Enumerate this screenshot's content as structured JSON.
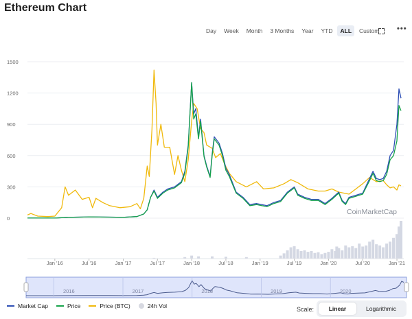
{
  "page": {
    "title": "Ethereum Chart"
  },
  "toolbar": {
    "ranges": [
      "Day",
      "Week",
      "Month",
      "3 Months",
      "Year",
      "YTD",
      "ALL",
      "Custom"
    ],
    "active_range": "ALL"
  },
  "colors": {
    "market_cap": "#2e4fb5",
    "price": "#16a34a",
    "price_btc": "#f0b90b",
    "volume": "#d4d8e3",
    "grid": "#eceef2",
    "navigator_fill": "#dfe5fb",
    "navigator_border": "#8ea0de"
  },
  "watermark": "CoinMarketCap",
  "legend": {
    "market_cap": "Market Cap",
    "price": "Price",
    "price_btc": "Price (BTC)",
    "volume": "24h Vol"
  },
  "scale": {
    "label": "Scale:",
    "options": [
      "Linear",
      "Logarithmic"
    ],
    "selected": "Linear"
  },
  "chart_data": {
    "type": "line",
    "title": "Ethereum Chart",
    "ylim": [
      0,
      1500
    ],
    "yticks": [
      0,
      300,
      600,
      900,
      1200,
      1500
    ],
    "x_domain": [
      2015.6,
      2021.1
    ],
    "x_tick_labels": [
      {
        "t": 2016.0,
        "label": "Jan '16"
      },
      {
        "t": 2016.5,
        "label": "Jul '16"
      },
      {
        "t": 2017.0,
        "label": "Jan '17"
      },
      {
        "t": 2017.5,
        "label": "Jul '17"
      },
      {
        "t": 2018.0,
        "label": "Jan '18"
      },
      {
        "t": 2018.5,
        "label": "Jul '18"
      },
      {
        "t": 2019.0,
        "label": "Jan '19"
      },
      {
        "t": 2019.5,
        "label": "Jul '19"
      },
      {
        "t": 2020.0,
        "label": "Jan '20"
      },
      {
        "t": 2020.5,
        "label": "Jul '20"
      },
      {
        "t": 2021.0,
        "label": "Jan '21"
      }
    ],
    "navigator_year_labels": [
      {
        "t": 2016.0,
        "label": "2016"
      },
      {
        "t": 2017.0,
        "label": "2017"
      },
      {
        "t": 2018.0,
        "label": "2018"
      },
      {
        "t": 2019.0,
        "label": "2019"
      },
      {
        "t": 2020.0,
        "label": "2020"
      }
    ],
    "series": [
      {
        "name": "Market Cap",
        "key": "market_cap",
        "points": [
          [
            2015.6,
            2
          ],
          [
            2016.0,
            1
          ],
          [
            2016.2,
            8
          ],
          [
            2016.5,
            12
          ],
          [
            2016.8,
            10
          ],
          [
            2017.0,
            8
          ],
          [
            2017.2,
            15
          ],
          [
            2017.3,
            40
          ],
          [
            2017.35,
            80
          ],
          [
            2017.4,
            200
          ],
          [
            2017.45,
            270
          ],
          [
            2017.5,
            200
          ],
          [
            2017.58,
            250
          ],
          [
            2017.65,
            280
          ],
          [
            2017.75,
            300
          ],
          [
            2017.85,
            350
          ],
          [
            2017.9,
            450
          ],
          [
            2017.95,
            700
          ],
          [
            2018.0,
            1300
          ],
          [
            2018.03,
            1000
          ],
          [
            2018.06,
            1050
          ],
          [
            2018.1,
            780
          ],
          [
            2018.13,
            950
          ],
          [
            2018.18,
            600
          ],
          [
            2018.22,
            500
          ],
          [
            2018.27,
            400
          ],
          [
            2018.3,
            620
          ],
          [
            2018.33,
            780
          ],
          [
            2018.4,
            720
          ],
          [
            2018.45,
            620
          ],
          [
            2018.5,
            480
          ],
          [
            2018.55,
            420
          ],
          [
            2018.65,
            250
          ],
          [
            2018.75,
            200
          ],
          [
            2018.85,
            130
          ],
          [
            2018.95,
            140
          ],
          [
            2019.1,
            120
          ],
          [
            2019.2,
            150
          ],
          [
            2019.3,
            170
          ],
          [
            2019.4,
            250
          ],
          [
            2019.5,
            300
          ],
          [
            2019.55,
            230
          ],
          [
            2019.65,
            200
          ],
          [
            2019.75,
            180
          ],
          [
            2019.85,
            180
          ],
          [
            2019.95,
            140
          ],
          [
            2020.05,
            190
          ],
          [
            2020.15,
            250
          ],
          [
            2020.2,
            170
          ],
          [
            2020.25,
            140
          ],
          [
            2020.3,
            200
          ],
          [
            2020.4,
            220
          ],
          [
            2020.5,
            240
          ],
          [
            2020.6,
            380
          ],
          [
            2020.65,
            450
          ],
          [
            2020.7,
            380
          ],
          [
            2020.75,
            370
          ],
          [
            2020.8,
            380
          ],
          [
            2020.85,
            450
          ],
          [
            2020.9,
            600
          ],
          [
            2020.95,
            650
          ],
          [
            2021.0,
            900
          ],
          [
            2021.03,
            1240
          ],
          [
            2021.06,
            1150
          ]
        ]
      },
      {
        "name": "Price",
        "key": "price",
        "points": [
          [
            2015.6,
            2
          ],
          [
            2016.0,
            1
          ],
          [
            2016.2,
            8
          ],
          [
            2016.5,
            12
          ],
          [
            2016.8,
            10
          ],
          [
            2017.0,
            8
          ],
          [
            2017.2,
            15
          ],
          [
            2017.3,
            40
          ],
          [
            2017.35,
            80
          ],
          [
            2017.4,
            200
          ],
          [
            2017.45,
            260
          ],
          [
            2017.5,
            190
          ],
          [
            2017.58,
            240
          ],
          [
            2017.65,
            270
          ],
          [
            2017.75,
            290
          ],
          [
            2017.85,
            340
          ],
          [
            2017.9,
            430
          ],
          [
            2017.95,
            680
          ],
          [
            2018.0,
            1300
          ],
          [
            2018.03,
            950
          ],
          [
            2018.06,
            1000
          ],
          [
            2018.1,
            760
          ],
          [
            2018.13,
            930
          ],
          [
            2018.18,
            590
          ],
          [
            2018.22,
            490
          ],
          [
            2018.27,
            390
          ],
          [
            2018.3,
            600
          ],
          [
            2018.33,
            760
          ],
          [
            2018.4,
            700
          ],
          [
            2018.45,
            600
          ],
          [
            2018.5,
            460
          ],
          [
            2018.55,
            400
          ],
          [
            2018.65,
            240
          ],
          [
            2018.75,
            190
          ],
          [
            2018.85,
            120
          ],
          [
            2018.95,
            130
          ],
          [
            2019.1,
            110
          ],
          [
            2019.2,
            140
          ],
          [
            2019.3,
            160
          ],
          [
            2019.4,
            240
          ],
          [
            2019.5,
            290
          ],
          [
            2019.55,
            220
          ],
          [
            2019.65,
            190
          ],
          [
            2019.75,
            170
          ],
          [
            2019.85,
            170
          ],
          [
            2019.95,
            130
          ],
          [
            2020.05,
            180
          ],
          [
            2020.15,
            240
          ],
          [
            2020.2,
            160
          ],
          [
            2020.25,
            130
          ],
          [
            2020.3,
            190
          ],
          [
            2020.4,
            210
          ],
          [
            2020.5,
            230
          ],
          [
            2020.6,
            360
          ],
          [
            2020.65,
            430
          ],
          [
            2020.7,
            360
          ],
          [
            2020.75,
            350
          ],
          [
            2020.8,
            360
          ],
          [
            2020.85,
            420
          ],
          [
            2020.9,
            560
          ],
          [
            2020.95,
            600
          ],
          [
            2021.0,
            740
          ],
          [
            2021.03,
            1080
          ],
          [
            2021.06,
            1030
          ]
        ]
      },
      {
        "name": "Price (BTC)",
        "key": "price_btc",
        "points": [
          [
            2015.6,
            30
          ],
          [
            2015.65,
            45
          ],
          [
            2015.75,
            20
          ],
          [
            2015.9,
            15
          ],
          [
            2016.0,
            20
          ],
          [
            2016.1,
            100
          ],
          [
            2016.15,
            300
          ],
          [
            2016.2,
            220
          ],
          [
            2016.3,
            270
          ],
          [
            2016.4,
            180
          ],
          [
            2016.5,
            200
          ],
          [
            2016.55,
            100
          ],
          [
            2016.6,
            190
          ],
          [
            2016.7,
            150
          ],
          [
            2016.8,
            120
          ],
          [
            2016.95,
            100
          ],
          [
            2017.1,
            110
          ],
          [
            2017.2,
            140
          ],
          [
            2017.25,
            90
          ],
          [
            2017.3,
            190
          ],
          [
            2017.35,
            500
          ],
          [
            2017.38,
            400
          ],
          [
            2017.42,
            850
          ],
          [
            2017.45,
            1420
          ],
          [
            2017.48,
            1100
          ],
          [
            2017.5,
            700
          ],
          [
            2017.55,
            900
          ],
          [
            2017.6,
            680
          ],
          [
            2017.68,
            680
          ],
          [
            2017.75,
            420
          ],
          [
            2017.8,
            600
          ],
          [
            2017.85,
            460
          ],
          [
            2017.9,
            350
          ],
          [
            2017.95,
            560
          ],
          [
            2018.0,
            930
          ],
          [
            2018.03,
            1100
          ],
          [
            2018.08,
            1050
          ],
          [
            2018.13,
            860
          ],
          [
            2018.18,
            820
          ],
          [
            2018.22,
            700
          ],
          [
            2018.3,
            670
          ],
          [
            2018.35,
            580
          ],
          [
            2018.42,
            620
          ],
          [
            2018.48,
            520
          ],
          [
            2018.55,
            430
          ],
          [
            2018.65,
            350
          ],
          [
            2018.8,
            300
          ],
          [
            2018.95,
            350
          ],
          [
            2019.05,
            280
          ],
          [
            2019.2,
            290
          ],
          [
            2019.35,
            330
          ],
          [
            2019.45,
            370
          ],
          [
            2019.55,
            340
          ],
          [
            2019.7,
            280
          ],
          [
            2019.85,
            260
          ],
          [
            2019.95,
            260
          ],
          [
            2020.05,
            280
          ],
          [
            2020.15,
            250
          ],
          [
            2020.3,
            230
          ],
          [
            2020.4,
            280
          ],
          [
            2020.5,
            330
          ],
          [
            2020.6,
            390
          ],
          [
            2020.7,
            350
          ],
          [
            2020.8,
            360
          ],
          [
            2020.85,
            320
          ],
          [
            2020.9,
            290
          ],
          [
            2020.95,
            300
          ],
          [
            2021.0,
            270
          ],
          [
            2021.03,
            320
          ],
          [
            2021.06,
            310
          ]
        ]
      }
    ],
    "volume_note": "24h volume shown as light grey bars along the bottom; values relative (0-1 of panel height)",
    "volume_bars": [
      [
        2017.45,
        0.02
      ],
      [
        2017.9,
        0.04
      ],
      [
        2018.0,
        0.08
      ],
      [
        2018.1,
        0.06
      ],
      [
        2018.3,
        0.06
      ],
      [
        2018.5,
        0.05
      ],
      [
        2018.8,
        0.04
      ],
      [
        2019.3,
        0.08
      ],
      [
        2019.35,
        0.14
      ],
      [
        2019.4,
        0.22
      ],
      [
        2019.45,
        0.3
      ],
      [
        2019.5,
        0.33
      ],
      [
        2019.55,
        0.25
      ],
      [
        2019.6,
        0.2
      ],
      [
        2019.65,
        0.22
      ],
      [
        2019.7,
        0.18
      ],
      [
        2019.75,
        0.2
      ],
      [
        2019.8,
        0.15
      ],
      [
        2019.85,
        0.17
      ],
      [
        2019.9,
        0.12
      ],
      [
        2019.95,
        0.15
      ],
      [
        2020.0,
        0.18
      ],
      [
        2020.05,
        0.25
      ],
      [
        2020.1,
        0.2
      ],
      [
        2020.12,
        0.32
      ],
      [
        2020.15,
        0.28
      ],
      [
        2020.2,
        0.22
      ],
      [
        2020.25,
        0.35
      ],
      [
        2020.3,
        0.3
      ],
      [
        2020.35,
        0.33
      ],
      [
        2020.4,
        0.28
      ],
      [
        2020.45,
        0.4
      ],
      [
        2020.5,
        0.32
      ],
      [
        2020.55,
        0.35
      ],
      [
        2020.6,
        0.45
      ],
      [
        2020.65,
        0.5
      ],
      [
        2020.7,
        0.38
      ],
      [
        2020.75,
        0.35
      ],
      [
        2020.8,
        0.3
      ],
      [
        2020.85,
        0.4
      ],
      [
        2020.9,
        0.45
      ],
      [
        2020.95,
        0.55
      ],
      [
        2021.0,
        0.65
      ],
      [
        2021.03,
        0.85
      ],
      [
        2021.06,
        1.0
      ]
    ]
  }
}
